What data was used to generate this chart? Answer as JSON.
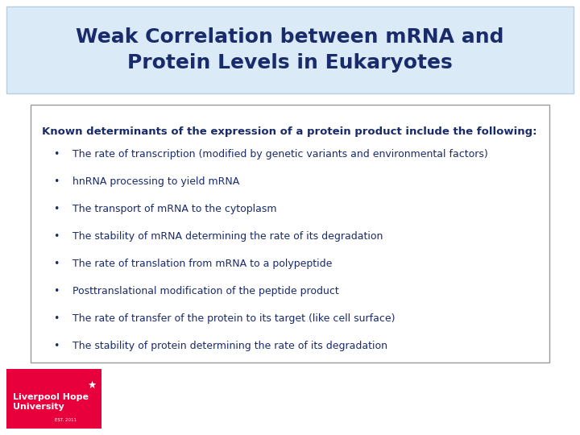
{
  "title_line1": "Weak Correlation between mRNA and",
  "title_line2": "Protein Levels in Eukaryotes",
  "title_color": "#1a2b6b",
  "title_bg_color": "#daeaf7",
  "title_border_color": "#b8cfe0",
  "title_fontsize": 18,
  "body_header": "Known determinants of the expression of a protein product include the following:",
  "bullet_points": [
    "The rate of transcription (modified by genetic variants and environmental factors)",
    "hnRNA processing to yield mRNA",
    "The transport of mRNA to the cytoplasm",
    "The stability of mRNA determining the rate of its degradation",
    "The rate of translation from mRNA to a polypeptide",
    "Posttranslational modification of the peptide product",
    "The rate of transfer of the protein to its target (like cell surface)",
    "The stability of protein determining the rate of its degradation"
  ],
  "text_color": "#1a2b6b",
  "box_bg_color": "#ffffff",
  "box_border_color": "#999999",
  "slide_bg_color": "#ffffff",
  "logo_bg_color": "#e8003d",
  "logo_text_color": "#ffffff",
  "body_fontsize": 9,
  "header_fontsize": 9.5
}
